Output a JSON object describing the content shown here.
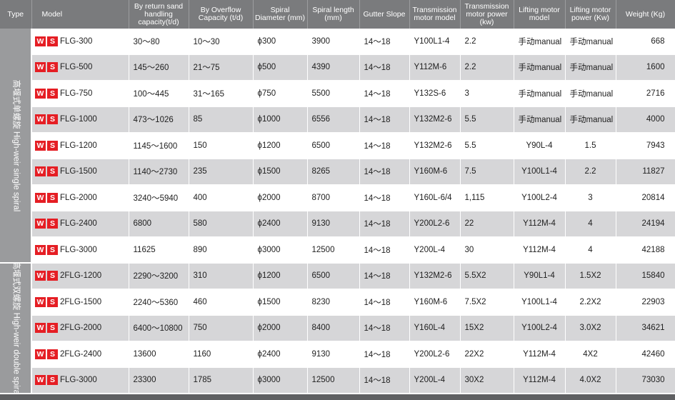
{
  "headers": {
    "type": "Type",
    "model": "Model",
    "capacity": "By return sand handling capacity(t/d)",
    "overflow": "By Overflow Capacity (t/d)",
    "diameter": "Spiral Diameter (mm)",
    "length": "Spiral length (mm)",
    "slope": "Gutter Slope",
    "trans_model": "Transmission motor model",
    "trans_power": "Transmission motor power (kw)",
    "lift_model": "Lifting motor model",
    "lift_power": "Lifting motor power (Kw)",
    "weight": "Weight (Kg)"
  },
  "groups": [
    {
      "label": "高堰式单螺旋 High-weir single spiral"
    },
    {
      "label": "高堰式双螺旋 High-weir double spiral"
    }
  ],
  "logo": {
    "w": "W",
    "s": "S",
    "color": "#e51e24"
  },
  "rows": [
    {
      "model": "FLG-300",
      "capacity": "30～80",
      "overflow": "10～30",
      "diameter": "ϕ300",
      "length": "3900",
      "slope": "14～18",
      "trans_model": "Y100L1-4",
      "trans_power": "2.2",
      "lift_model": "手动manual",
      "lift_power": "手动manual",
      "weight": "668"
    },
    {
      "model": "FLG-500",
      "capacity": "145～260",
      "overflow": "21～75",
      "diameter": "ϕ500",
      "length": "4390",
      "slope": "14～18",
      "trans_model": "Y112M-6",
      "trans_power": "2.2",
      "lift_model": "手动manual",
      "lift_power": "手动manual",
      "weight": "1600"
    },
    {
      "model": "FLG-750",
      "capacity": "100～445",
      "overflow": "31～165",
      "diameter": "ϕ750",
      "length": "5500",
      "slope": "14～18",
      "trans_model": "Y132S-6",
      "trans_power": "3",
      "lift_model": "手动manual",
      "lift_power": "手动manual",
      "weight": "2716"
    },
    {
      "model": "FLG-1000",
      "capacity": "473～1026",
      "overflow": "85",
      "diameter": "ϕ1000",
      "length": "6556",
      "slope": "14～18",
      "trans_model": "Y132M2-6",
      "trans_power": "5.5",
      "lift_model": "手动manual",
      "lift_power": "手动manual",
      "weight": "4000"
    },
    {
      "model": "FLG-1200",
      "capacity": "1145～1600",
      "overflow": "150",
      "diameter": "ϕ1200",
      "length": "6500",
      "slope": "14～18",
      "trans_model": "Y132M2-6",
      "trans_power": "5.5",
      "lift_model": "Y90L-4",
      "lift_power": "1.5",
      "weight": "7943"
    },
    {
      "model": "FLG-1500",
      "capacity": "1140～2730",
      "overflow": "235",
      "diameter": "ϕ1500",
      "length": "8265",
      "slope": "14～18",
      "trans_model": "Y160M-6",
      "trans_power": "7.5",
      "lift_model": "Y100L1-4",
      "lift_power": "2.2",
      "weight": "11827"
    },
    {
      "model": "FLG-2000",
      "capacity": "3240～5940",
      "overflow": "400",
      "diameter": "ϕ2000",
      "length": "8700",
      "slope": "14～18",
      "trans_model": "Y160L-6/4",
      "trans_power": "1,115",
      "lift_model": "Y100L2-4",
      "lift_power": "3",
      "weight": "20814"
    },
    {
      "model": "FLG-2400",
      "capacity": "6800",
      "overflow": "580",
      "diameter": "ϕ2400",
      "length": "9130",
      "slope": "14～18",
      "trans_model": "Y200L2-6",
      "trans_power": "22",
      "lift_model": "Y112M-4",
      "lift_power": "4",
      "weight": "24194"
    },
    {
      "model": "FLG-3000",
      "capacity": "11625",
      "overflow": "890",
      "diameter": "ϕ3000",
      "length": "12500",
      "slope": "14～18",
      "trans_model": "Y200L-4",
      "trans_power": "30",
      "lift_model": "Y112M-4",
      "lift_power": "4",
      "weight": "42188"
    },
    {
      "model": "2FLG-1200",
      "capacity": "2290～3200",
      "overflow": "310",
      "diameter": "ϕ1200",
      "length": "6500",
      "slope": "14～18",
      "trans_model": "Y132M2-6",
      "trans_power": "5.5X2",
      "lift_model": "Y90L1-4",
      "lift_power": "1.5X2",
      "weight": "15840"
    },
    {
      "model": "2FLG-1500",
      "capacity": "2240～5360",
      "overflow": "460",
      "diameter": "ϕ1500",
      "length": "8230",
      "slope": "14～18",
      "trans_model": "Y160M-6",
      "trans_power": "7.5X2",
      "lift_model": "Y100L1-4",
      "lift_power": "2.2X2",
      "weight": "22903"
    },
    {
      "model": "2FLG-2000",
      "capacity": "6400～10800",
      "overflow": "750",
      "diameter": "ϕ2000",
      "length": "8400",
      "slope": "14～18",
      "trans_model": "Y160L-4",
      "trans_power": "15X2",
      "lift_model": "Y100L2-4",
      "lift_power": "3.0X2",
      "weight": "34621"
    },
    {
      "model": "2FLG-2400",
      "capacity": "13600",
      "overflow": "1160",
      "diameter": "ϕ2400",
      "length": "9130",
      "slope": "14～18",
      "trans_model": "Y200L2-6",
      "trans_power": "22X2",
      "lift_model": "Y112M-4",
      "lift_power": "4X2",
      "weight": "42460"
    },
    {
      "model": "FLG-3000",
      "capacity": "23300",
      "overflow": "1785",
      "diameter": "ϕ3000",
      "length": "12500",
      "slope": "14～18",
      "trans_model": "Y200L-4",
      "trans_power": "30X2",
      "lift_model": "Y112M-4",
      "lift_power": "4.0X2",
      "weight": "73030"
    }
  ]
}
